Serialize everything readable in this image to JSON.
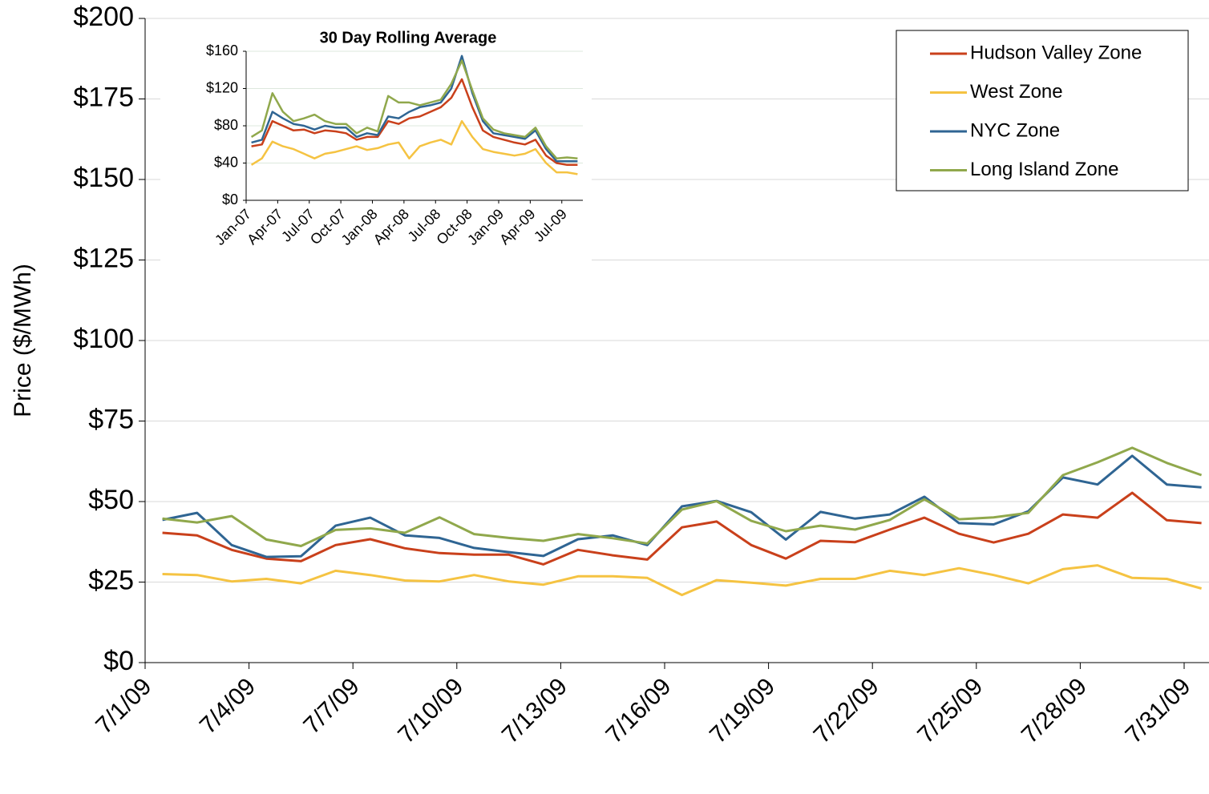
{
  "chart_data": [
    {
      "type": "line",
      "ylabel": "Price ($/MWh)",
      "grid": true,
      "legend": "upper right",
      "categories": [
        "7/1/09",
        null,
        null,
        "7/4/09",
        null,
        null,
        "7/7/09",
        null,
        null,
        "7/10/09",
        null,
        null,
        "7/13/09",
        null,
        null,
        "7/16/09",
        null,
        null,
        "7/19/09",
        null,
        null,
        "7/22/09",
        null,
        null,
        "7/25/09",
        null,
        null,
        "7/28/09",
        null,
        null,
        "7/31/09"
      ],
      "ylim": [
        0,
        200
      ],
      "yticks": [
        {
          "value": 0,
          "label": "$0"
        },
        {
          "value": 25,
          "label": "$25"
        },
        {
          "value": 50,
          "label": "$50"
        },
        {
          "value": 75,
          "label": "$75"
        },
        {
          "value": 100,
          "label": "$100"
        },
        {
          "value": 125,
          "label": "$125"
        },
        {
          "value": 150,
          "label": "$150"
        },
        {
          "value": 175,
          "label": "$175"
        },
        {
          "value": 200,
          "label": "$200"
        }
      ],
      "series": [
        {
          "name": "Hudson Valley Zone",
          "color": "#c9401b",
          "values": [
            40.3,
            39.5,
            35,
            32.3,
            31.5,
            36.5,
            38.3,
            35.5,
            34,
            33.5,
            33.5,
            30.5,
            35,
            33.3,
            32,
            42,
            43.8,
            36.5,
            32.3,
            37.8,
            37.4,
            41.3,
            45,
            40,
            37.3,
            40,
            46,
            45,
            52.7,
            44.2,
            43.3
          ]
        },
        {
          "name": "West Zone",
          "color": "#f5c342",
          "values": [
            27.5,
            27.2,
            25.2,
            26,
            24.6,
            28.5,
            27.2,
            25.5,
            25.2,
            27.2,
            25.2,
            24.2,
            26.8,
            26.8,
            26.3,
            21,
            25.6,
            24.8,
            23.9,
            26,
            26,
            28.5,
            27.2,
            29.3,
            27.2,
            24.6,
            29,
            30.2,
            26.3,
            26,
            23
          ]
        },
        {
          "name": "NYC Zone",
          "color": "#2f6593",
          "values": [
            44.3,
            46.5,
            36.5,
            32.8,
            33,
            42.5,
            45,
            39.5,
            38.7,
            35.6,
            34.3,
            33.1,
            38.3,
            39.5,
            36.5,
            48.5,
            50.2,
            46.7,
            38.2,
            46.8,
            44.7,
            46,
            51.5,
            43.3,
            42.9,
            47,
            57.5,
            55.3,
            64.2,
            55.3,
            54.4
          ]
        },
        {
          "name": "Long Island Zone",
          "color": "#90a84c",
          "values": [
            44.7,
            43.5,
            45.5,
            38.2,
            36.2,
            41.2,
            41.7,
            40.3,
            45.1,
            39.9,
            38.7,
            37.8,
            39.9,
            38.6,
            37,
            47.5,
            50.1,
            44,
            40.8,
            42.5,
            41.3,
            44.3,
            50.7,
            44.5,
            45.1,
            46.5,
            58.2,
            62.2,
            66.7,
            62,
            58.2
          ]
        }
      ]
    },
    {
      "type": "line",
      "title": "30 Day Rolling Average",
      "grid": true,
      "categories": [
        "Jan-07",
        null,
        null,
        "Apr-07",
        null,
        null,
        "Jul-07",
        null,
        null,
        "Oct-07",
        null,
        null,
        "Jan-08",
        null,
        null,
        "Apr-08",
        null,
        null,
        "Jul-08",
        null,
        null,
        "Oct-08",
        null,
        null,
        "Jan-09",
        null,
        null,
        "Apr-09",
        null,
        null,
        "Jul-09",
        null
      ],
      "ylim": [
        0,
        160
      ],
      "yticks": [
        {
          "value": 0,
          "label": "$0"
        },
        {
          "value": 40,
          "label": "$40"
        },
        {
          "value": 80,
          "label": "$80"
        },
        {
          "value": 120,
          "label": "$120"
        },
        {
          "value": 160,
          "label": "$160"
        }
      ],
      "series": [
        {
          "name": "Hudson Valley Zone",
          "color": "#c9401b",
          "values": [
            58,
            60,
            85,
            80,
            75,
            76,
            72,
            75,
            74,
            72,
            65,
            68,
            68,
            85,
            82,
            88,
            90,
            95,
            100,
            110,
            130,
            100,
            75,
            68,
            65,
            62,
            60,
            65,
            48,
            40,
            38,
            38
          ]
        },
        {
          "name": "West Zone",
          "color": "#f5c342",
          "values": [
            38,
            45,
            63,
            58,
            55,
            50,
            45,
            50,
            52,
            55,
            58,
            54,
            56,
            60,
            62,
            45,
            58,
            62,
            65,
            60,
            85,
            68,
            55,
            52,
            50,
            48,
            50,
            55,
            40,
            30,
            30,
            28
          ]
        },
        {
          "name": "NYC Zone",
          "color": "#2f6593",
          "values": [
            62,
            65,
            95,
            88,
            82,
            80,
            76,
            80,
            78,
            78,
            68,
            72,
            70,
            90,
            88,
            95,
            100,
            102,
            105,
            120,
            155,
            115,
            85,
            72,
            70,
            68,
            66,
            75,
            55,
            42,
            42,
            42
          ]
        },
        {
          "name": "Long Island Zone",
          "color": "#90a84c",
          "values": [
            68,
            75,
            115,
            95,
            85,
            88,
            92,
            85,
            82,
            82,
            72,
            78,
            74,
            112,
            105,
            105,
            102,
            105,
            108,
            125,
            150,
            118,
            88,
            76,
            72,
            70,
            68,
            78,
            58,
            45,
            46,
            45
          ]
        }
      ]
    }
  ]
}
